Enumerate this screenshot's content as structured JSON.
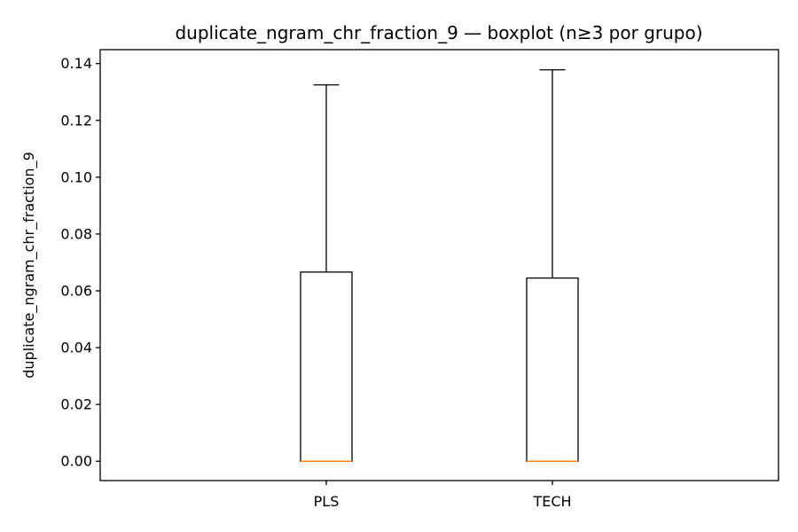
{
  "chart_data": {
    "type": "boxplot",
    "title": "duplicate_ngram_chr_fraction_9 — boxplot (n≥3 por grupo)",
    "xlabel": "",
    "ylabel": "duplicate_ngram_chr_fraction_9",
    "ylim": [
      -0.0068,
      0.1449
    ],
    "yticks": [
      "0.00",
      "0.02",
      "0.04",
      "0.06",
      "0.08",
      "0.10",
      "0.12",
      "0.14"
    ],
    "categories": [
      "PLS",
      "TECH"
    ],
    "boxes": [
      {
        "category": "PLS",
        "whisker_low": 0.0,
        "q1": 0.0,
        "median": 0.0,
        "q3": 0.0666,
        "whisker_high": 0.1325
      },
      {
        "category": "TECH",
        "whisker_low": 0.0,
        "q1": 0.0,
        "median": 0.0,
        "q3": 0.0645,
        "whisker_high": 0.1378
      }
    ],
    "grid": false,
    "colors": {
      "box": "#000000",
      "median": "#ff7f0e"
    }
  }
}
